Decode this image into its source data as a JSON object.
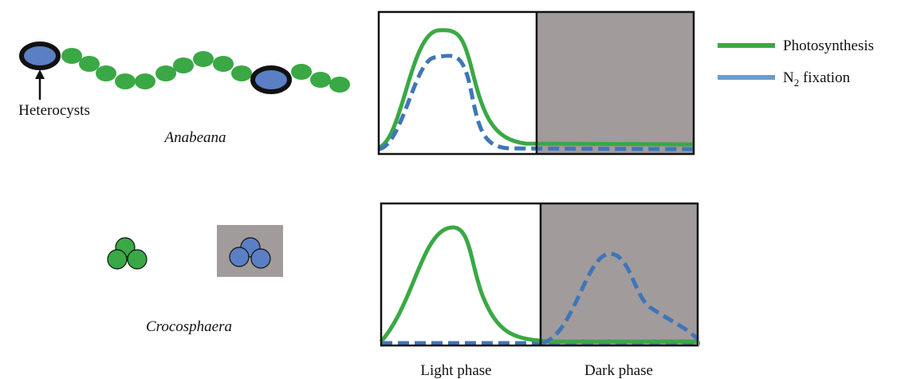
{
  "organisms": [
    {
      "name": "Anabeana",
      "label": "Heterocysts"
    },
    {
      "name": "Crocosphaera"
    }
  ],
  "legend": {
    "photosynthesis": "Photosynthesis",
    "n2_fixation": {
      "main": "N",
      "sub": "2",
      "rest": " fixation"
    }
  },
  "phases": {
    "light": "Light phase",
    "dark": "Dark phase"
  }
}
